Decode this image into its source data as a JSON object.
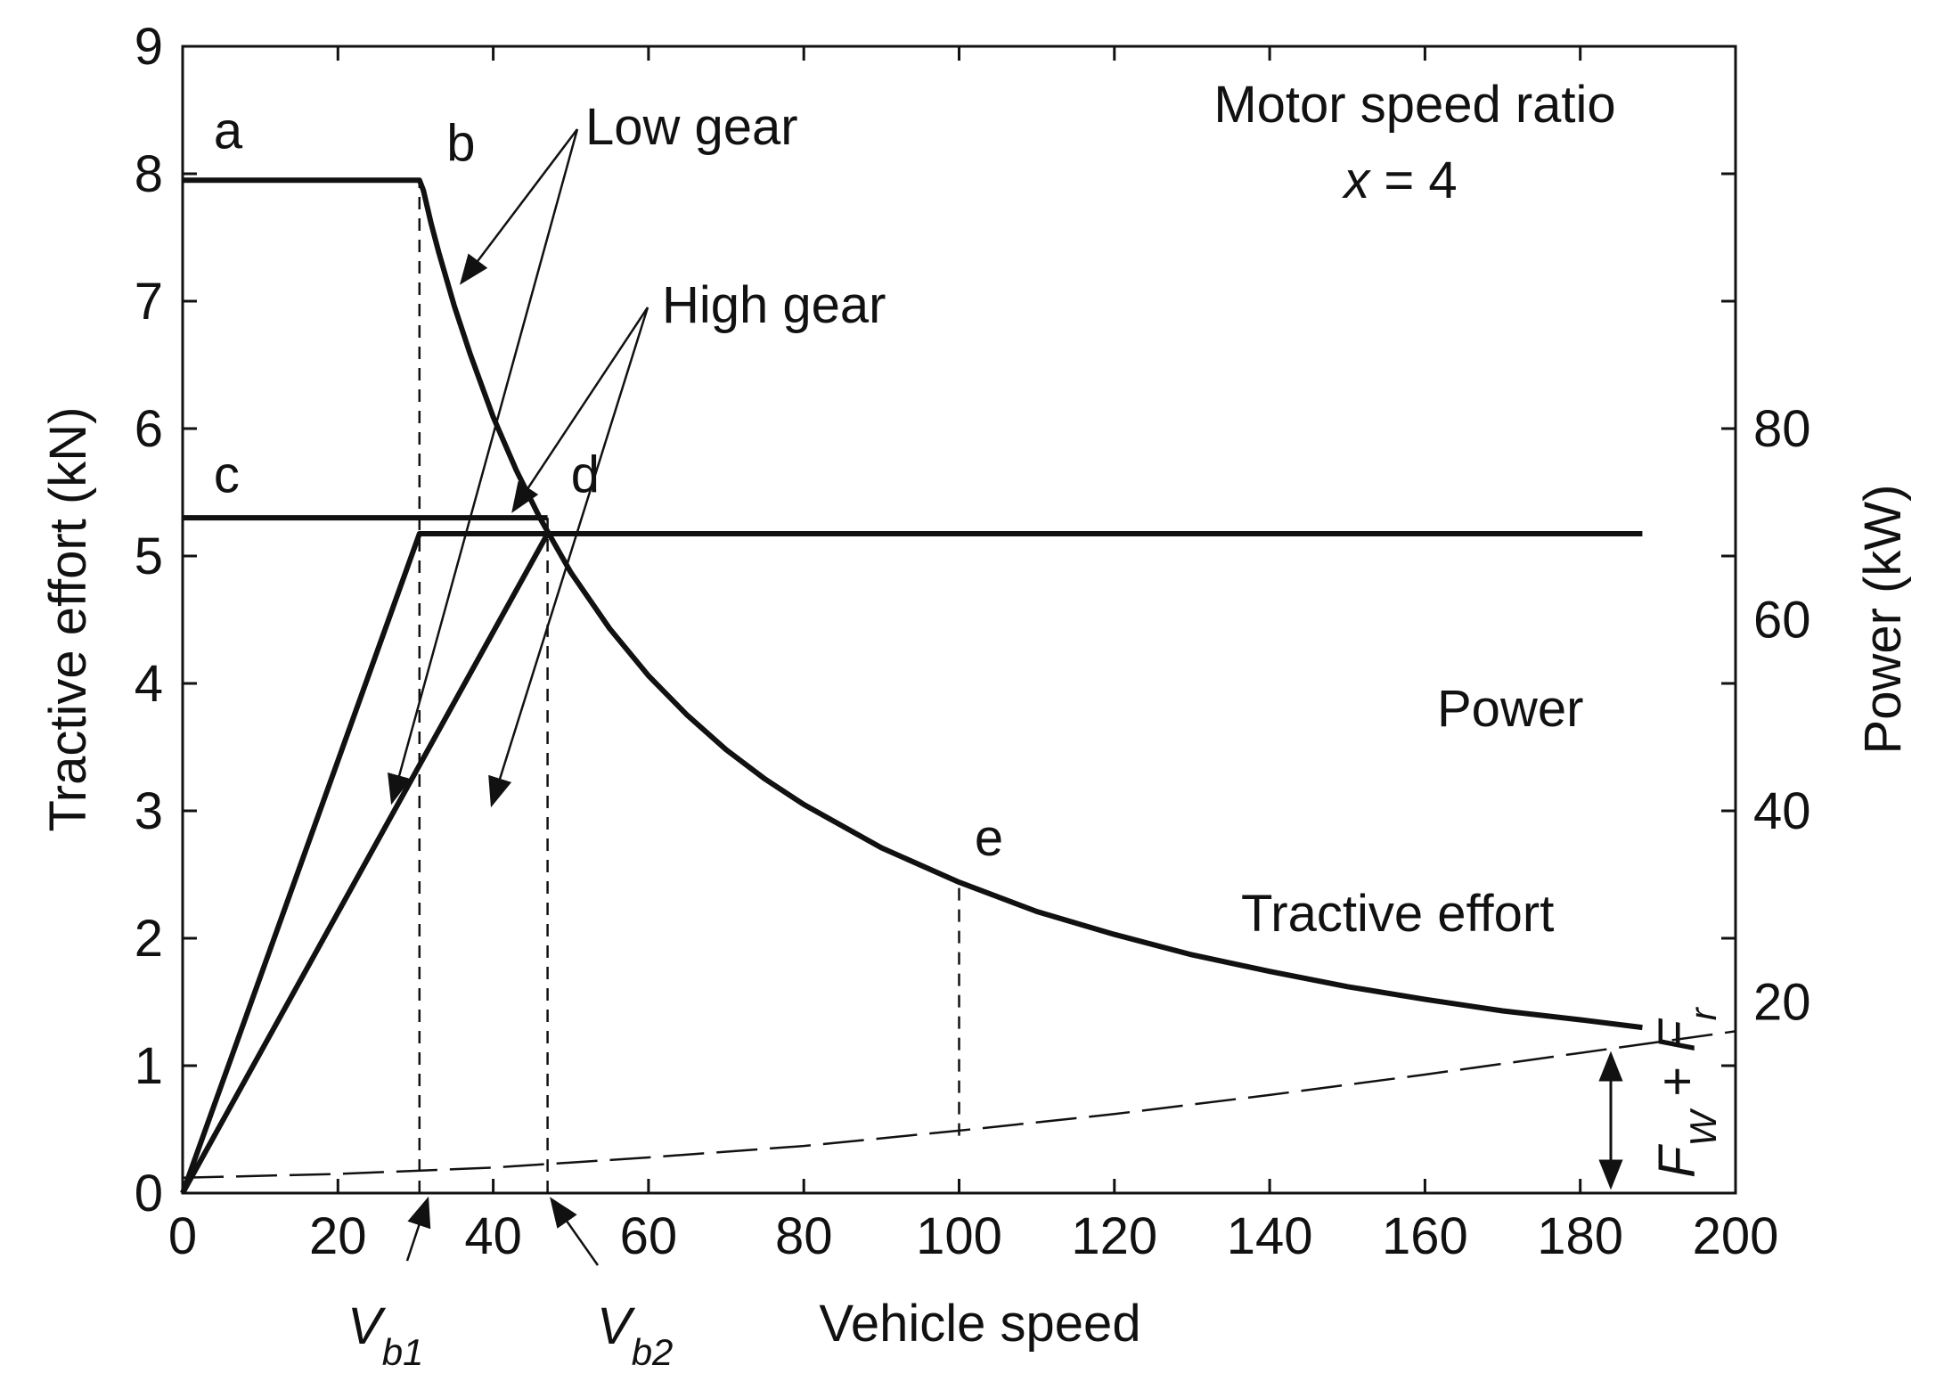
{
  "chart_data": {
    "type": "line",
    "title": "",
    "xlabel": "Vehicle speed",
    "ylabel": "Tractive effort (kN)",
    "y2label": "Power (kW)",
    "xlim": [
      0,
      200
    ],
    "ylim": [
      0,
      9
    ],
    "y2lim": [
      0,
      120
    ],
    "x_ticks": [
      0,
      20,
      40,
      60,
      80,
      100,
      120,
      140,
      160,
      180,
      200
    ],
    "y_ticks": [
      0,
      1,
      2,
      3,
      4,
      5,
      6,
      7,
      8,
      9
    ],
    "y2_ticks": [
      20,
      40,
      60,
      80
    ],
    "grid": false,
    "series": [
      {
        "name": "Tractive effort (low gear)",
        "style": "thick",
        "x": [
          0,
          30.5,
          31,
          32,
          33,
          35,
          37,
          40,
          43,
          46,
          50,
          55,
          60,
          65,
          70,
          75,
          80,
          90,
          100,
          110,
          120,
          130,
          140,
          150,
          160,
          170,
          180,
          188
        ],
        "values": [
          7.95,
          7.95,
          7.87,
          7.61,
          7.38,
          6.96,
          6.59,
          6.09,
          5.67,
          5.3,
          4.87,
          4.43,
          4.06,
          3.75,
          3.48,
          3.25,
          3.05,
          2.71,
          2.44,
          2.21,
          2.03,
          1.87,
          1.74,
          1.62,
          1.52,
          1.43,
          1.36,
          1.3
        ]
      },
      {
        "name": "Tractive effort (high gear)",
        "style": "thick",
        "x": [
          0,
          47
        ],
        "values": [
          5.3,
          5.3
        ]
      },
      {
        "name": "Power (low gear)",
        "style": "thick",
        "axis": "y2",
        "x": [
          0,
          30.5,
          188
        ],
        "values": [
          0,
          69,
          69
        ]
      },
      {
        "name": "Power (high gear)",
        "style": "thick",
        "axis": "y2",
        "x": [
          0,
          47
        ],
        "values": [
          0,
          69
        ]
      },
      {
        "name": "Fw + Fr",
        "style": "dashed",
        "x": [
          0,
          20,
          40,
          60,
          80,
          100,
          120,
          140,
          160,
          180,
          200
        ],
        "values": [
          0.12,
          0.15,
          0.2,
          0.28,
          0.37,
          0.49,
          0.62,
          0.77,
          0.93,
          1.1,
          1.27
        ]
      }
    ],
    "guide_lines": [
      {
        "x": 30.5,
        "y_from": 0,
        "y_to": 7.95
      },
      {
        "x": 47,
        "y_from": 0,
        "y_to": 5.3
      },
      {
        "x": 100,
        "y_from": 0.45,
        "y_to": 2.44
      }
    ],
    "point_labels": [
      {
        "text": "a",
        "x": 4,
        "y": 8.2
      },
      {
        "text": "b",
        "x": 34,
        "y": 8.1
      },
      {
        "text": "c",
        "x": 4,
        "y": 5.5
      },
      {
        "text": "d",
        "x": 50,
        "y": 5.5
      },
      {
        "text": "e",
        "x": 102,
        "y": 2.65
      }
    ],
    "annotations": {
      "ratio_line1": "Motor speed ratio",
      "ratio_line2_var": "x",
      "ratio_line2_rest": " = 4",
      "low_gear": "Low gear",
      "high_gear": "High gear",
      "power": "Power",
      "tractive_effort": "Tractive effort",
      "resist": {
        "F": "F",
        "w": "W",
        "plus": " + ",
        "F2": "F",
        "r": "r"
      },
      "vb1": {
        "V": "V",
        "sub": "b1"
      },
      "vb2": {
        "V": "V",
        "sub": "b2"
      }
    }
  }
}
